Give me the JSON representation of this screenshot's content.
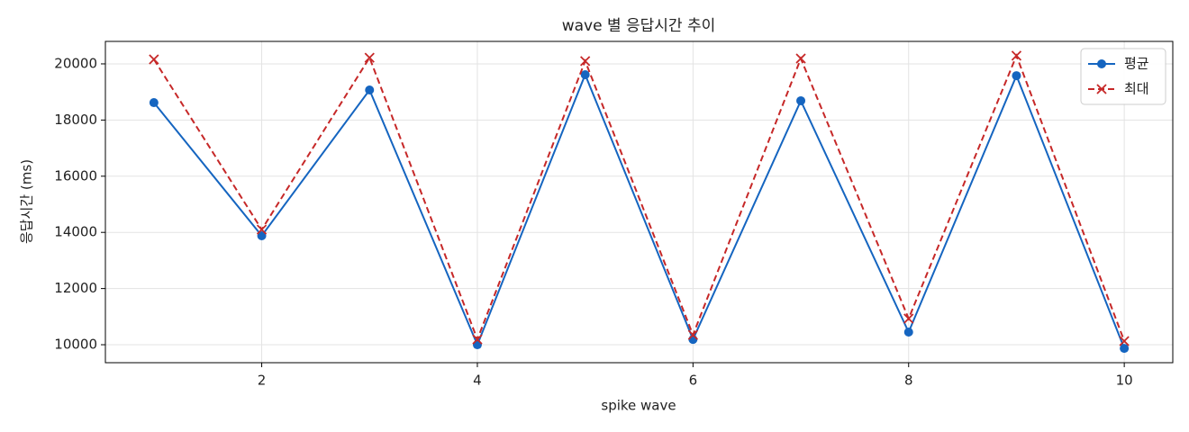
{
  "chart_data": {
    "type": "line",
    "title": "wave 별 응답시간 추이",
    "x_label": "spike wave",
    "y_label": "응답시간 (ms)",
    "x": [
      1,
      2,
      3,
      4,
      5,
      6,
      7,
      8,
      9,
      10
    ],
    "series": [
      {
        "name": "평균",
        "color": "#1565c0",
        "marker": "circle",
        "dash": "solid",
        "values": [
          18620,
          13880,
          19070,
          10000,
          19615,
          10190,
          18686,
          10450,
          19580,
          9870
        ]
      },
      {
        "name": "최대",
        "color": "#c62828",
        "marker": "x",
        "dash": "dashed",
        "values": [
          20160,
          14100,
          20220,
          10190,
          20100,
          10350,
          20190,
          10930,
          20290,
          10130
        ]
      }
    ],
    "xlim": [
      0.55,
      10.45
    ],
    "xticks": [
      2,
      4,
      6,
      8,
      10
    ],
    "ylim": [
      9360,
      20800
    ],
    "yticks": [
      10000,
      12000,
      14000,
      16000,
      18000,
      20000
    ],
    "grid": true,
    "legend": "upper right"
  }
}
